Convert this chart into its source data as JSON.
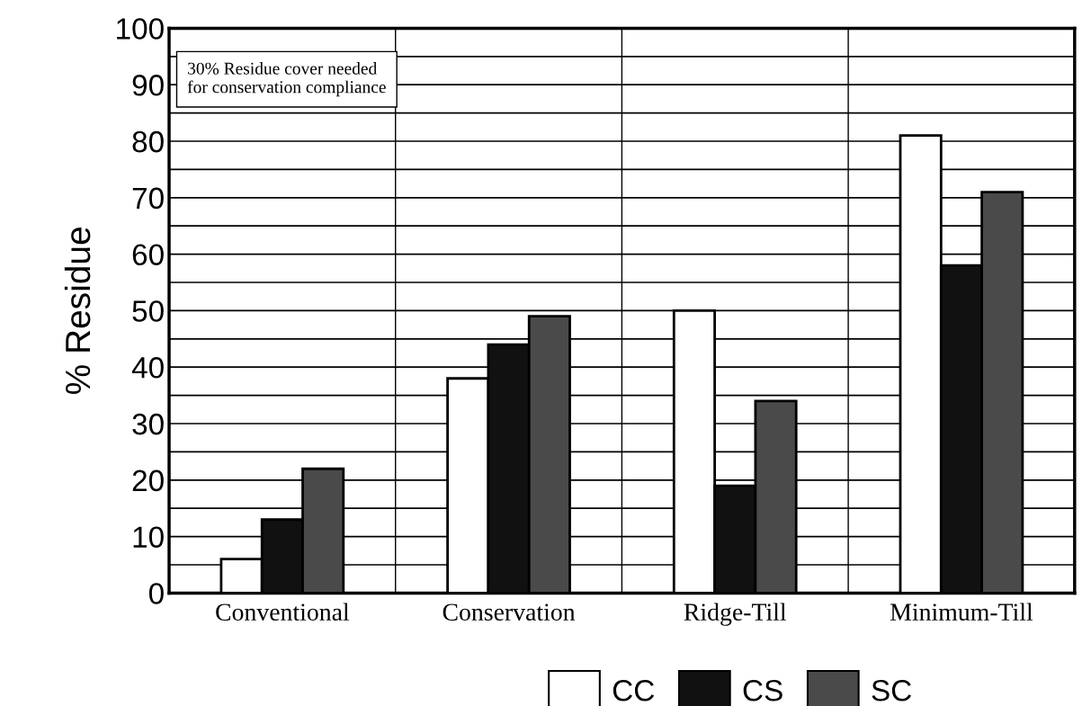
{
  "chart_data": {
    "type": "bar",
    "ylabel": "% Residue",
    "categories": [
      "Conventional",
      "Conservation",
      "Ridge-Till",
      "Minimum-Till"
    ],
    "series": [
      {
        "name": "CC",
        "color": "#ffffff",
        "values": [
          6,
          38,
          50,
          81
        ]
      },
      {
        "name": "CS",
        "color": "#111111",
        "values": [
          13,
          44,
          19,
          58
        ]
      },
      {
        "name": "SC",
        "color": "#4a4a4a",
        "values": [
          22,
          49,
          34,
          71
        ]
      }
    ],
    "ylim": [
      0,
      100
    ],
    "yticks": [
      0,
      {
        "value": 5,
        "label": null
      },
      10,
      {
        "value": 15,
        "label": null
      },
      20,
      {
        "value": 25,
        "label": null
      },
      30,
      {
        "value": 35,
        "label": null
      },
      40,
      {
        "value": 45,
        "label": null
      },
      50,
      {
        "value": 55,
        "label": null
      },
      60,
      {
        "value": 65,
        "label": null
      },
      70,
      {
        "value": 75,
        "label": null
      },
      80,
      {
        "value": 85,
        "label": null
      },
      90,
      {
        "value": 95,
        "label": null
      },
      100
    ],
    "grid": "y",
    "legend": "bottom",
    "annotations": [
      "30% Residue cover needed\nfor conservation compliance"
    ]
  }
}
